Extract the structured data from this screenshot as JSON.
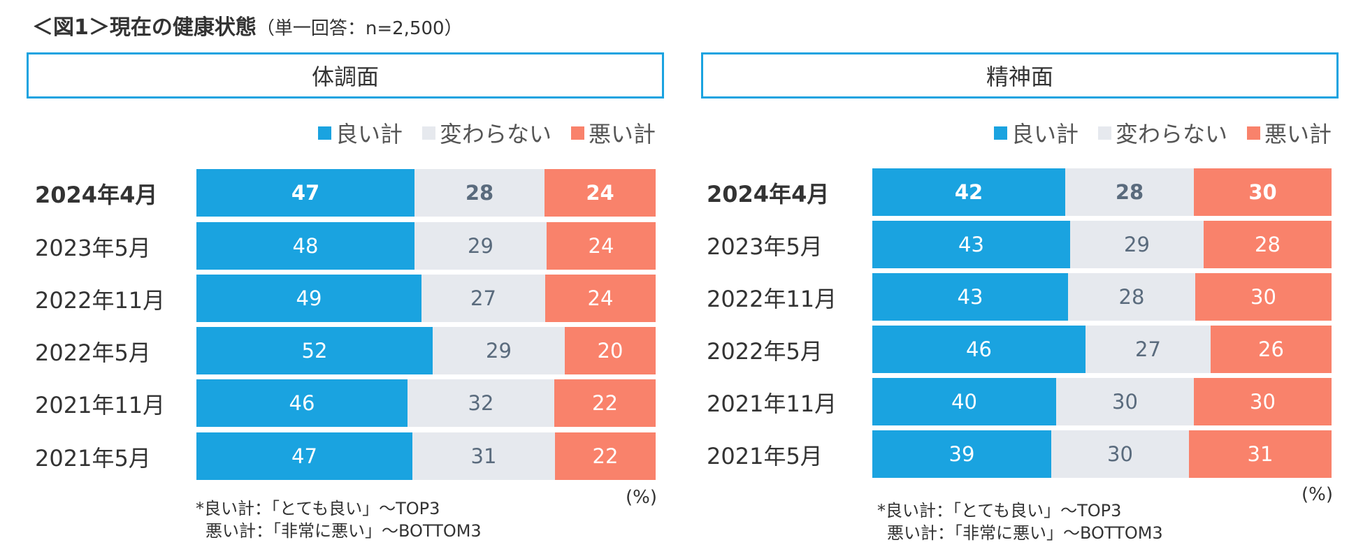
{
  "title": {
    "main": "＜図1＞現在の健康状態",
    "sub": "（単一回答：n=2,500）"
  },
  "colors": {
    "good": "#1aa3e0",
    "same": "#e6e9ee",
    "bad": "#f9826b",
    "frame": "#1aa3e0"
  },
  "unit": "(%)",
  "notes": [
    "*良い計：「とても良い」～TOP3",
    "悪い計：「非常に悪い」～BOTTOM3"
  ],
  "chart_data": [
    {
      "type": "bar",
      "stacked": "100%",
      "orientation": "horizontal",
      "title": "体調面",
      "legend": [
        "良い計",
        "変わらない",
        "悪い計"
      ],
      "categories": [
        "2024年4月",
        "2023年5月",
        "2022年11月",
        "2022年5月",
        "2021年11月",
        "2021年5月"
      ],
      "series": [
        {
          "name": "良い計",
          "values": [
            47,
            48,
            49,
            52,
            46,
            47
          ]
        },
        {
          "name": "変わらない",
          "values": [
            28,
            29,
            27,
            29,
            32,
            31
          ]
        },
        {
          "name": "悪い計",
          "values": [
            24,
            24,
            24,
            20,
            22,
            22
          ]
        }
      ],
      "highlight_category": "2024年4月",
      "xlim": [
        0,
        100
      ]
    },
    {
      "type": "bar",
      "stacked": "100%",
      "orientation": "horizontal",
      "title": "精神面",
      "legend": [
        "良い計",
        "変わらない",
        "悪い計"
      ],
      "categories": [
        "2024年4月",
        "2023年5月",
        "2022年11月",
        "2022年5月",
        "2021年11月",
        "2021年5月"
      ],
      "series": [
        {
          "name": "良い計",
          "values": [
            42,
            43,
            43,
            46,
            40,
            39
          ]
        },
        {
          "name": "変わらない",
          "values": [
            28,
            29,
            28,
            27,
            30,
            30
          ]
        },
        {
          "name": "悪い計",
          "values": [
            30,
            28,
            30,
            26,
            30,
            31
          ]
        }
      ],
      "highlight_category": "2024年4月",
      "xlim": [
        0,
        100
      ]
    }
  ]
}
